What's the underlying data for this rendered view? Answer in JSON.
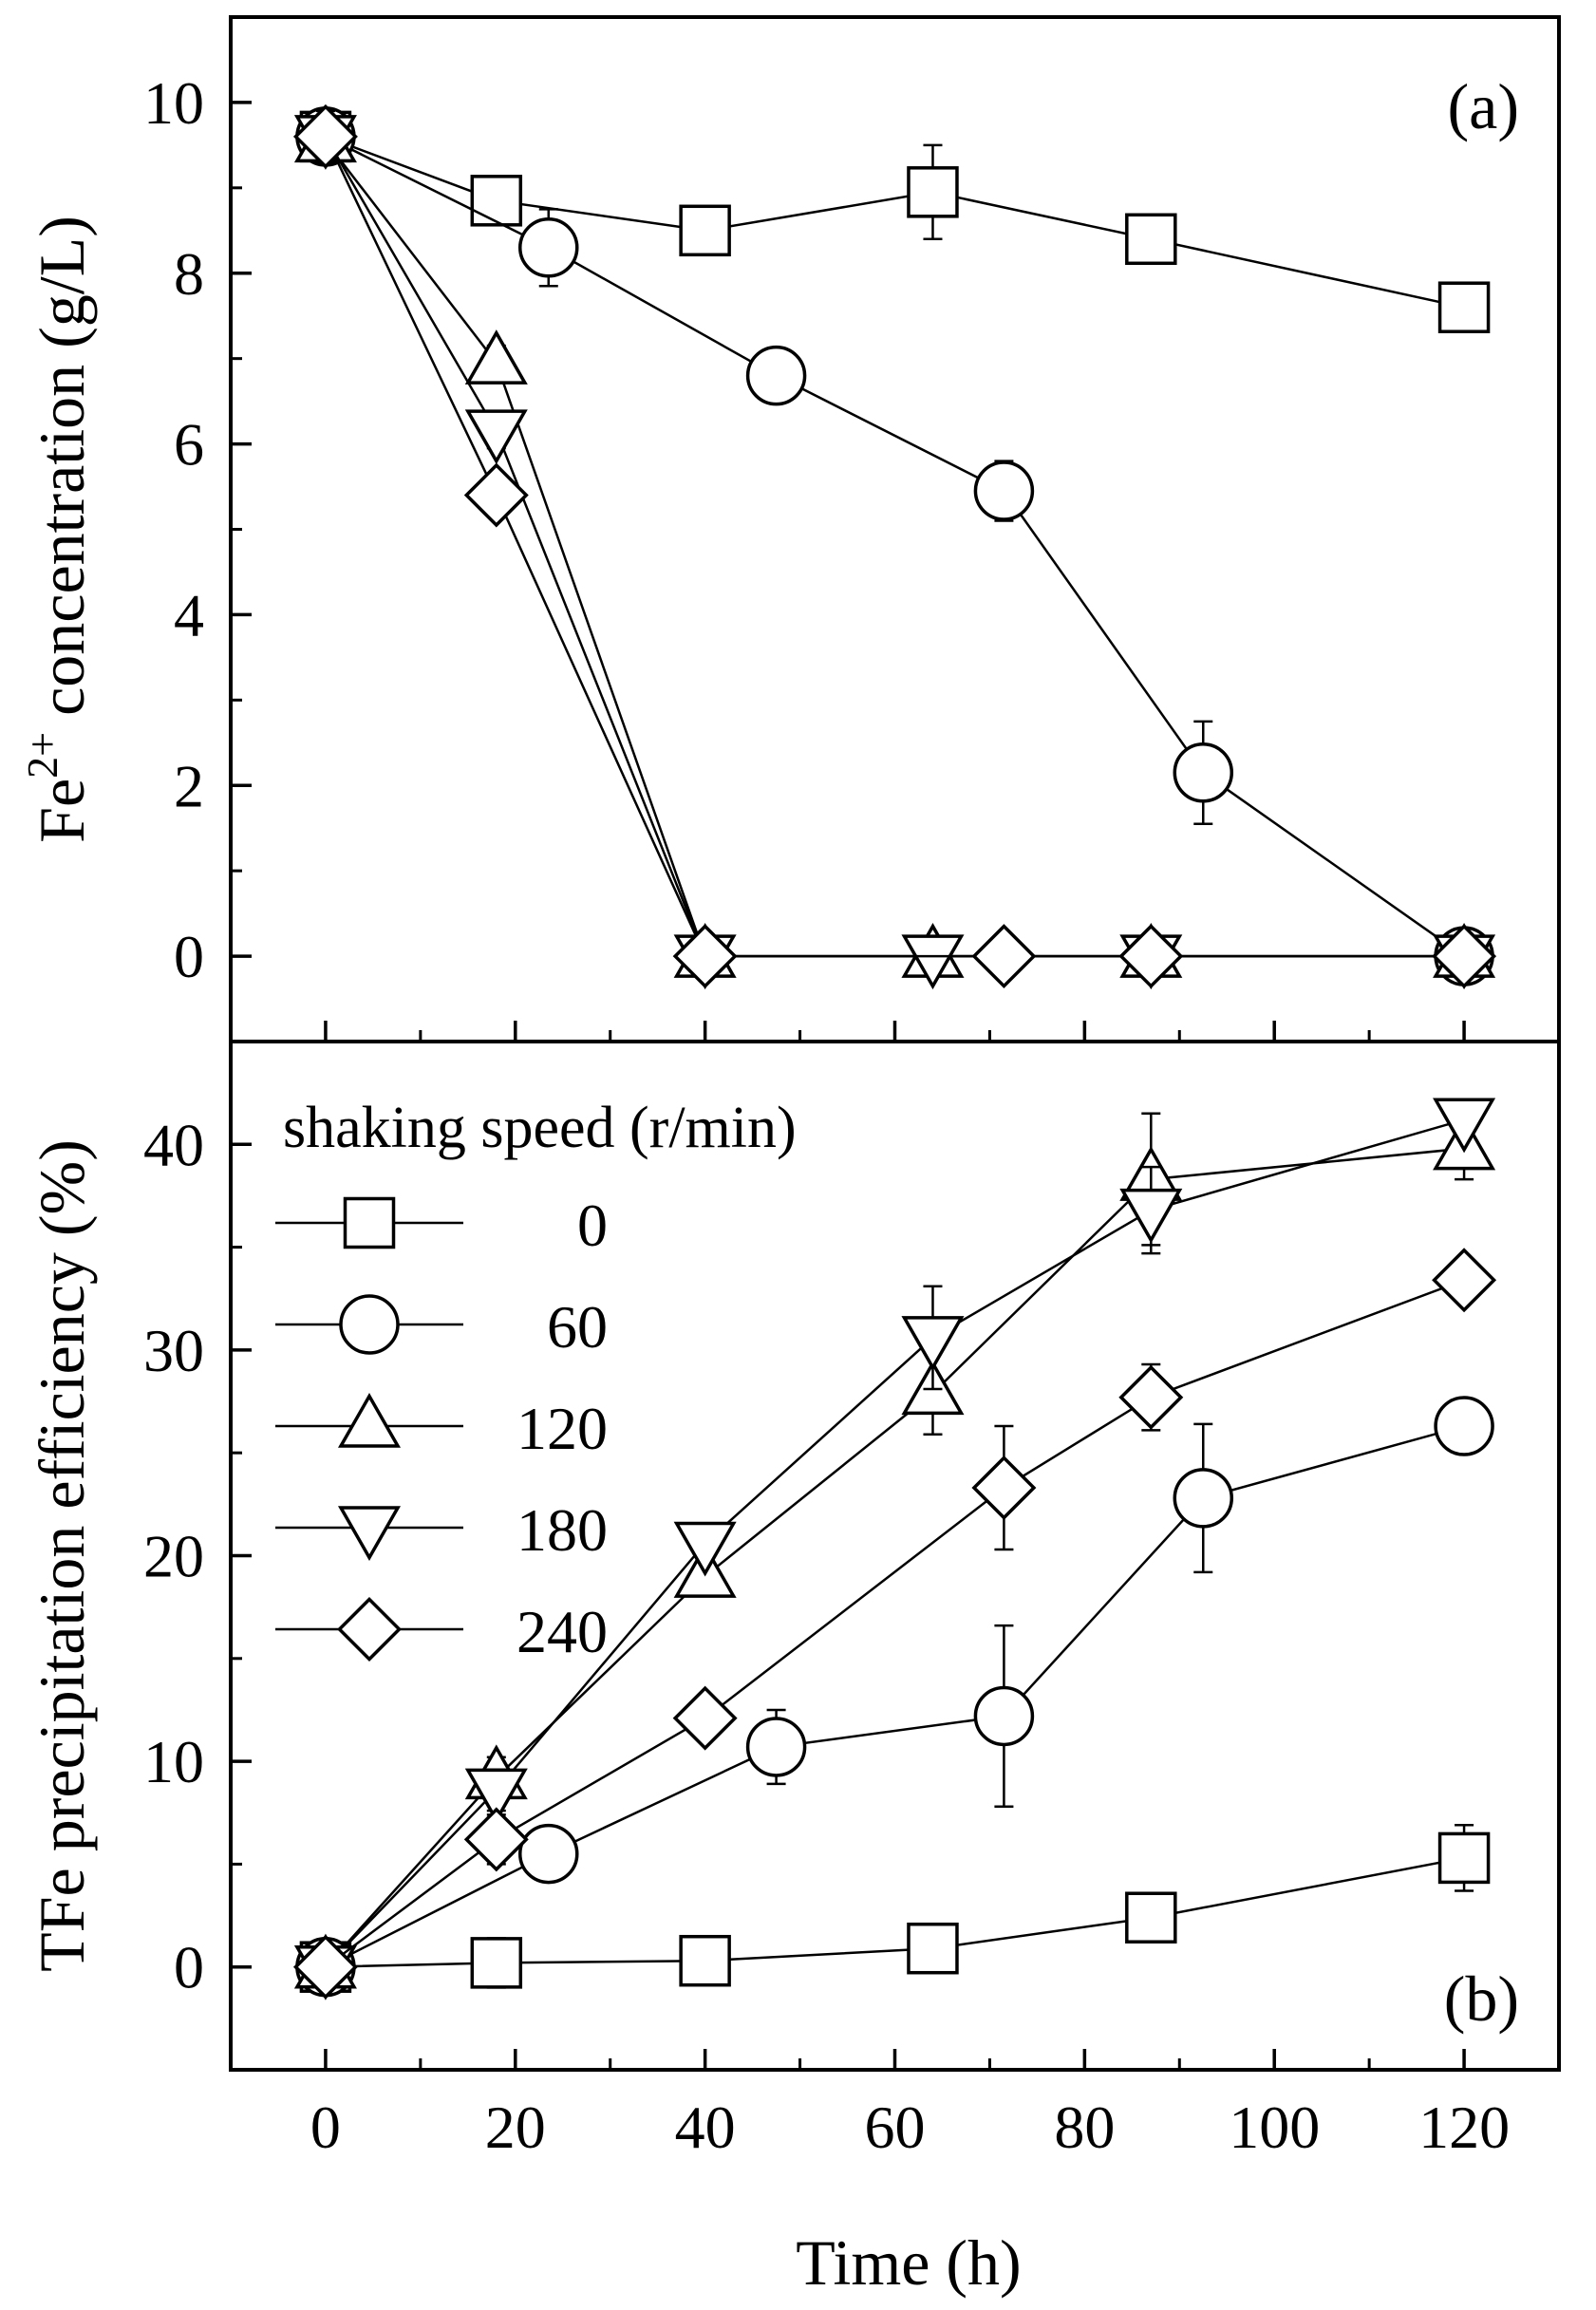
{
  "figure": {
    "xlabel": "Time (h)",
    "legend_title": "shaking speed (r/min)",
    "legend_placement": "upper-left of panel (b)"
  },
  "chart_data": [
    {
      "type": "line",
      "panel_label": "(a)",
      "ylabel_prefix": "Fe",
      "ylabel_sup": "2+",
      "ylabel_suffix": " concentration (g/L)",
      "xlabel": "Time (h)",
      "xlim": [
        -10,
        130
      ],
      "ylim": [
        -1,
        11
      ],
      "yticks": [
        0,
        2,
        4,
        6,
        8,
        10
      ],
      "xticks": [
        0,
        20,
        40,
        60,
        80,
        100,
        120
      ],
      "series": [
        {
          "name": "0",
          "marker": "square",
          "x": [
            0,
            18,
            40,
            64,
            87,
            120
          ],
          "y": [
            9.6,
            8.85,
            8.5,
            8.95,
            8.4,
            7.6
          ],
          "err": [
            0.2,
            0.2,
            0.2,
            0.55,
            0.15,
            0.05
          ]
        },
        {
          "name": "60",
          "marker": "circle",
          "x": [
            0,
            23.5,
            47.5,
            71.5,
            92.5,
            120
          ],
          "y": [
            9.6,
            8.3,
            6.8,
            5.45,
            2.15,
            0
          ],
          "err": [
            0.2,
            0.45,
            0.2,
            0.35,
            0.6,
            0.05
          ]
        },
        {
          "name": "120",
          "marker": "triangle-up",
          "x": [
            0,
            18,
            40,
            64,
            87,
            120
          ],
          "y": [
            9.55,
            6.95,
            0,
            0,
            0,
            0
          ],
          "err": [
            0.2,
            0.2,
            0.05,
            0.05,
            0.05,
            0.05
          ]
        },
        {
          "name": "180",
          "marker": "triangle-down",
          "x": [
            0,
            18,
            40,
            64,
            87,
            120
          ],
          "y": [
            9.6,
            6.15,
            0,
            0,
            0,
            0
          ],
          "err": [
            0.3,
            0.2,
            0.05,
            0.05,
            0.05,
            0.05
          ]
        },
        {
          "name": "240",
          "marker": "diamond",
          "x": [
            0,
            18,
            40,
            71.5,
            87,
            120
          ],
          "y": [
            9.6,
            5.4,
            0,
            0,
            0,
            0
          ],
          "err": [
            0.2,
            0.15,
            0.05,
            0.05,
            0.05,
            0.05
          ]
        }
      ]
    },
    {
      "type": "line",
      "panel_label": "(b)",
      "ylabel": "TFe precipitation efficiency  (%)",
      "xlabel": "Time (h)",
      "xlim": [
        -10,
        130
      ],
      "ylim": [
        -5,
        45
      ],
      "yticks": [
        0,
        10,
        20,
        30,
        40
      ],
      "xticks": [
        0,
        20,
        40,
        60,
        80,
        100,
        120
      ],
      "series": [
        {
          "name": "0",
          "marker": "square",
          "x": [
            0,
            18,
            40,
            64,
            87,
            120
          ],
          "y": [
            0,
            0.2,
            0.3,
            0.9,
            2.4,
            5.3
          ],
          "err": [
            0.3,
            1.2,
            0.8,
            0.9,
            0.8,
            1.6
          ]
        },
        {
          "name": "60",
          "marker": "circle",
          "x": [
            0,
            23.5,
            47.5,
            71.5,
            92.5,
            120
          ],
          "y": [
            0,
            5.5,
            10.7,
            12.2,
            22.8,
            26.3
          ],
          "err": [
            0.3,
            0.9,
            1.8,
            4.4,
            3.6,
            1.2
          ]
        },
        {
          "name": "120",
          "marker": "triangle-up",
          "x": [
            0,
            18,
            40,
            64,
            87,
            120
          ],
          "y": [
            0,
            9.2,
            19.0,
            27.9,
            38.3,
            39.8
          ],
          "err": [
            0.3,
            1.0,
            0.7,
            2.0,
            3.2,
            1.5
          ]
        },
        {
          "name": "180",
          "marker": "triangle-down",
          "x": [
            0,
            18,
            40,
            64,
            87,
            120
          ],
          "y": [
            0,
            8.6,
            20.6,
            30.6,
            36.8,
            41.2
          ],
          "err": [
            0.3,
            1.0,
            0.7,
            2.5,
            2.1,
            0.8
          ]
        },
        {
          "name": "240",
          "marker": "diamond",
          "x": [
            0,
            18,
            40,
            71.5,
            87,
            120
          ],
          "y": [
            0,
            6.2,
            12.1,
            23.3,
            27.7,
            33.4
          ],
          "err": [
            0.3,
            1.2,
            1.0,
            3.0,
            1.6,
            0.9
          ]
        }
      ]
    }
  ]
}
